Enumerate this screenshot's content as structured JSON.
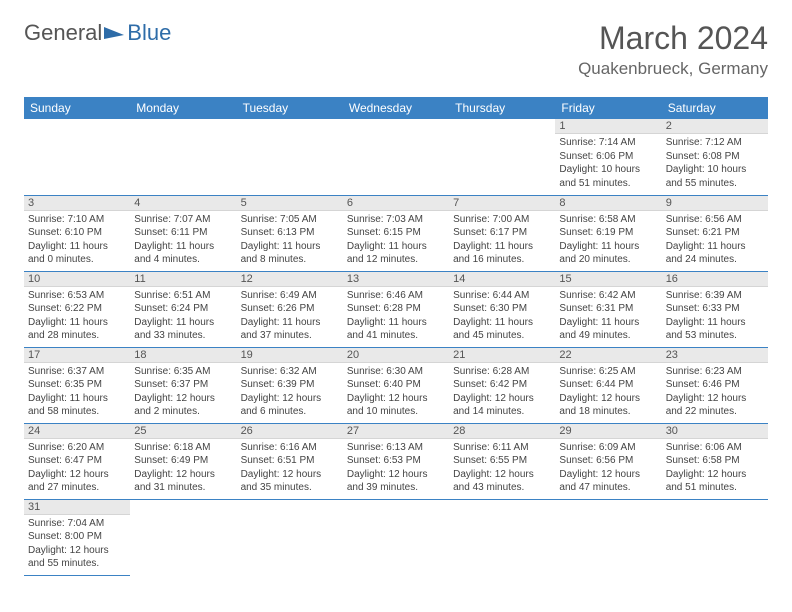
{
  "logo": {
    "text1": "General",
    "text2": "Blue",
    "accent": "#2e6ca8"
  },
  "title": "March 2024",
  "location": "Quakenbrueck, Germany",
  "colors": {
    "header_bg": "#3b82c4",
    "day_bg": "#e9e9e9",
    "border": "#3b82c4"
  },
  "weekdays": [
    "Sunday",
    "Monday",
    "Tuesday",
    "Wednesday",
    "Thursday",
    "Friday",
    "Saturday"
  ],
  "rows": [
    [
      null,
      null,
      null,
      null,
      null,
      {
        "n": "1",
        "sr": "7:14 AM",
        "ss": "6:06 PM",
        "dl": "10 hours and 51 minutes."
      },
      {
        "n": "2",
        "sr": "7:12 AM",
        "ss": "6:08 PM",
        "dl": "10 hours and 55 minutes."
      }
    ],
    [
      {
        "n": "3",
        "sr": "7:10 AM",
        "ss": "6:10 PM",
        "dl": "11 hours and 0 minutes."
      },
      {
        "n": "4",
        "sr": "7:07 AM",
        "ss": "6:11 PM",
        "dl": "11 hours and 4 minutes."
      },
      {
        "n": "5",
        "sr": "7:05 AM",
        "ss": "6:13 PM",
        "dl": "11 hours and 8 minutes."
      },
      {
        "n": "6",
        "sr": "7:03 AM",
        "ss": "6:15 PM",
        "dl": "11 hours and 12 minutes."
      },
      {
        "n": "7",
        "sr": "7:00 AM",
        "ss": "6:17 PM",
        "dl": "11 hours and 16 minutes."
      },
      {
        "n": "8",
        "sr": "6:58 AM",
        "ss": "6:19 PM",
        "dl": "11 hours and 20 minutes."
      },
      {
        "n": "9",
        "sr": "6:56 AM",
        "ss": "6:21 PM",
        "dl": "11 hours and 24 minutes."
      }
    ],
    [
      {
        "n": "10",
        "sr": "6:53 AM",
        "ss": "6:22 PM",
        "dl": "11 hours and 28 minutes."
      },
      {
        "n": "11",
        "sr": "6:51 AM",
        "ss": "6:24 PM",
        "dl": "11 hours and 33 minutes."
      },
      {
        "n": "12",
        "sr": "6:49 AM",
        "ss": "6:26 PM",
        "dl": "11 hours and 37 minutes."
      },
      {
        "n": "13",
        "sr": "6:46 AM",
        "ss": "6:28 PM",
        "dl": "11 hours and 41 minutes."
      },
      {
        "n": "14",
        "sr": "6:44 AM",
        "ss": "6:30 PM",
        "dl": "11 hours and 45 minutes."
      },
      {
        "n": "15",
        "sr": "6:42 AM",
        "ss": "6:31 PM",
        "dl": "11 hours and 49 minutes."
      },
      {
        "n": "16",
        "sr": "6:39 AM",
        "ss": "6:33 PM",
        "dl": "11 hours and 53 minutes."
      }
    ],
    [
      {
        "n": "17",
        "sr": "6:37 AM",
        "ss": "6:35 PM",
        "dl": "11 hours and 58 minutes."
      },
      {
        "n": "18",
        "sr": "6:35 AM",
        "ss": "6:37 PM",
        "dl": "12 hours and 2 minutes."
      },
      {
        "n": "19",
        "sr": "6:32 AM",
        "ss": "6:39 PM",
        "dl": "12 hours and 6 minutes."
      },
      {
        "n": "20",
        "sr": "6:30 AM",
        "ss": "6:40 PM",
        "dl": "12 hours and 10 minutes."
      },
      {
        "n": "21",
        "sr": "6:28 AM",
        "ss": "6:42 PM",
        "dl": "12 hours and 14 minutes."
      },
      {
        "n": "22",
        "sr": "6:25 AM",
        "ss": "6:44 PM",
        "dl": "12 hours and 18 minutes."
      },
      {
        "n": "23",
        "sr": "6:23 AM",
        "ss": "6:46 PM",
        "dl": "12 hours and 22 minutes."
      }
    ],
    [
      {
        "n": "24",
        "sr": "6:20 AM",
        "ss": "6:47 PM",
        "dl": "12 hours and 27 minutes."
      },
      {
        "n": "25",
        "sr": "6:18 AM",
        "ss": "6:49 PM",
        "dl": "12 hours and 31 minutes."
      },
      {
        "n": "26",
        "sr": "6:16 AM",
        "ss": "6:51 PM",
        "dl": "12 hours and 35 minutes."
      },
      {
        "n": "27",
        "sr": "6:13 AM",
        "ss": "6:53 PM",
        "dl": "12 hours and 39 minutes."
      },
      {
        "n": "28",
        "sr": "6:11 AM",
        "ss": "6:55 PM",
        "dl": "12 hours and 43 minutes."
      },
      {
        "n": "29",
        "sr": "6:09 AM",
        "ss": "6:56 PM",
        "dl": "12 hours and 47 minutes."
      },
      {
        "n": "30",
        "sr": "6:06 AM",
        "ss": "6:58 PM",
        "dl": "12 hours and 51 minutes."
      }
    ],
    [
      {
        "n": "31",
        "sr": "7:04 AM",
        "ss": "8:00 PM",
        "dl": "12 hours and 55 minutes."
      },
      null,
      null,
      null,
      null,
      null,
      null
    ]
  ],
  "labels": {
    "sunrise": "Sunrise:",
    "sunset": "Sunset:",
    "daylight": "Daylight:"
  }
}
